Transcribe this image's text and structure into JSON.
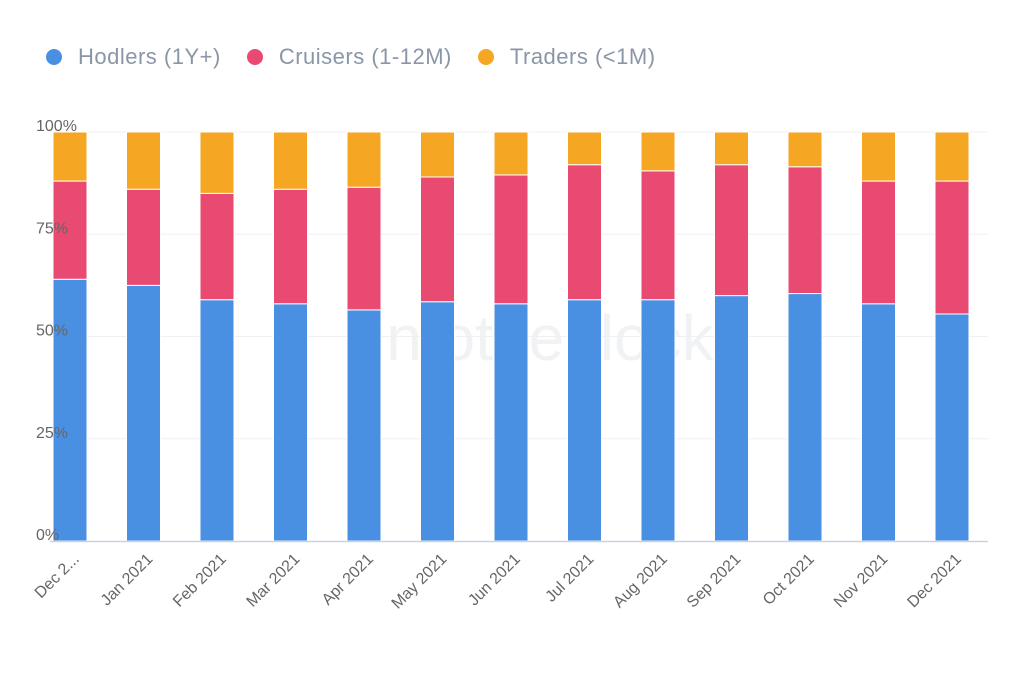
{
  "legend": [
    {
      "label": "Hodlers (1Y+)",
      "color": "#4a90e2"
    },
    {
      "label": "Cruisers (1-12M)",
      "color": "#e84a72"
    },
    {
      "label": "Traders (<1M)",
      "color": "#f5a623"
    }
  ],
  "watermark": "intotheblock",
  "chart_data": {
    "type": "bar",
    "stacked": true,
    "title": "",
    "xlabel": "",
    "ylabel": "",
    "ylim": [
      0,
      100
    ],
    "yticks": [
      "0%",
      "25%",
      "50%",
      "75%",
      "100%"
    ],
    "grid": true,
    "legend_position": "top-left",
    "categories": [
      "Dec 2...",
      "Jan 2021",
      "Feb 2021",
      "Mar 2021",
      "Apr 2021",
      "May 2021",
      "Jun 2021",
      "Jul 2021",
      "Aug 2021",
      "Sep 2021",
      "Oct 2021",
      "Nov 2021",
      "Dec 2021"
    ],
    "series": [
      {
        "name": "Hodlers (1Y+)",
        "color": "#4a90e2",
        "values": [
          64.0,
          62.5,
          59.0,
          58.0,
          56.5,
          58.5,
          58.0,
          59.0,
          59.0,
          60.0,
          60.5,
          58.0,
          55.5
        ]
      },
      {
        "name": "Cruisers (1-12M)",
        "color": "#e84a72",
        "values": [
          24.0,
          23.5,
          26.0,
          28.0,
          30.0,
          30.5,
          31.5,
          33.0,
          31.5,
          32.0,
          31.0,
          30.0,
          32.5
        ]
      },
      {
        "name": "Traders (<1M)",
        "color": "#f5a623",
        "values": [
          12.0,
          14.0,
          15.0,
          14.0,
          13.5,
          11.0,
          10.5,
          8.0,
          9.5,
          8.0,
          8.5,
          12.0,
          12.0
        ]
      }
    ]
  }
}
